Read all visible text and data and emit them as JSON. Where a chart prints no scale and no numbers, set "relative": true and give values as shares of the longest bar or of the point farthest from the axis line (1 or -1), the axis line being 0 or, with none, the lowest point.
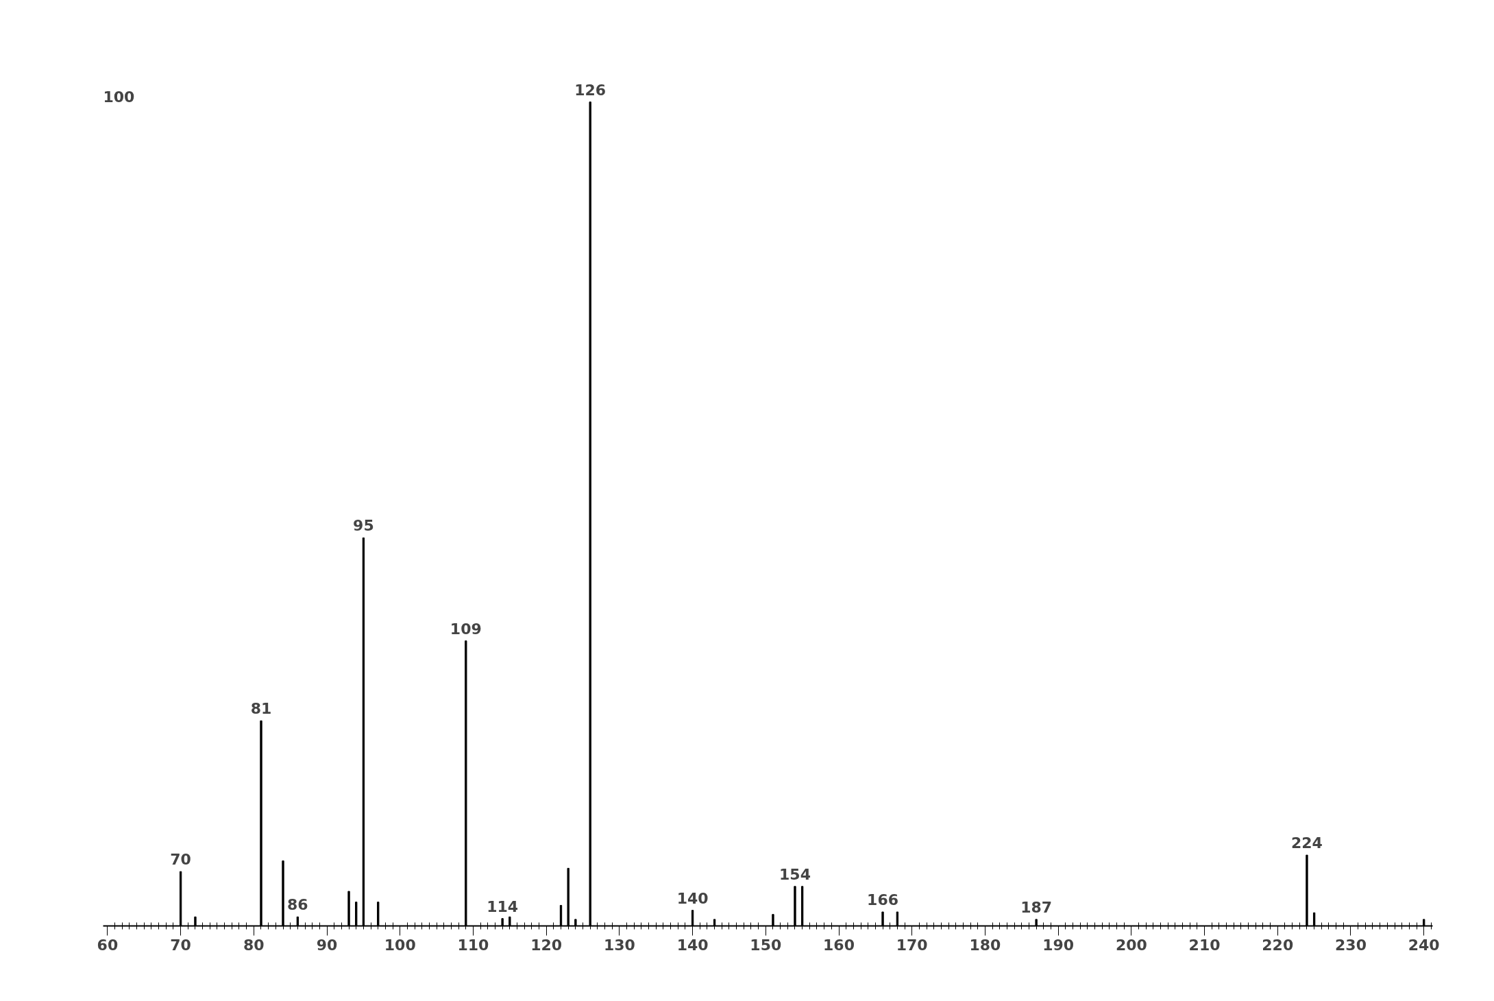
{
  "chart_data": {
    "type": "bar",
    "relative": true,
    "color": "#000000",
    "x": [
      70,
      72,
      81,
      84,
      86,
      93,
      94,
      95,
      97,
      109,
      114,
      115,
      122,
      123,
      124,
      126,
      140,
      143,
      151,
      154,
      155,
      166,
      168,
      187,
      224,
      225,
      240
    ],
    "values": [
      0.066,
      0.011,
      0.249,
      0.079,
      0.011,
      0.042,
      0.029,
      0.471,
      0.029,
      0.346,
      0.009,
      0.011,
      0.025,
      0.07,
      0.008,
      1,
      0.019,
      0.008,
      0.014,
      0.048,
      0.048,
      0.017,
      0.017,
      0.008,
      0.086,
      0.016,
      0.008
    ],
    "xlim": [
      59.4,
      241.2
    ],
    "xticks": [
      60,
      70,
      80,
      90,
      100,
      110,
      120,
      130,
      140,
      150,
      160,
      170,
      180,
      190,
      200,
      210,
      220,
      230,
      240
    ],
    "grid": false,
    "annotations": [
      "100",
      {
        "text": "70",
        "x": 70,
        "y": 0.066
      },
      {
        "text": "81",
        "x": 81,
        "y": 0.249
      },
      {
        "text": "86",
        "x": 86,
        "y": 0.011
      },
      {
        "text": "95",
        "x": 95,
        "y": 0.471
      },
      {
        "text": "109",
        "x": 109,
        "y": 0.346
      },
      {
        "text": "114",
        "x": 114,
        "y": 0.009
      },
      {
        "text": "126",
        "x": 126,
        "y": 1
      },
      {
        "text": "140",
        "x": 140,
        "y": 0.019
      },
      {
        "text": "154",
        "x": 154,
        "y": 0.048
      },
      {
        "text": "166",
        "x": 166,
        "y": 0.017
      },
      {
        "text": "187",
        "x": 187,
        "y": 0.008
      },
      {
        "text": "224",
        "x": 224,
        "y": 0.086
      }
    ]
  }
}
